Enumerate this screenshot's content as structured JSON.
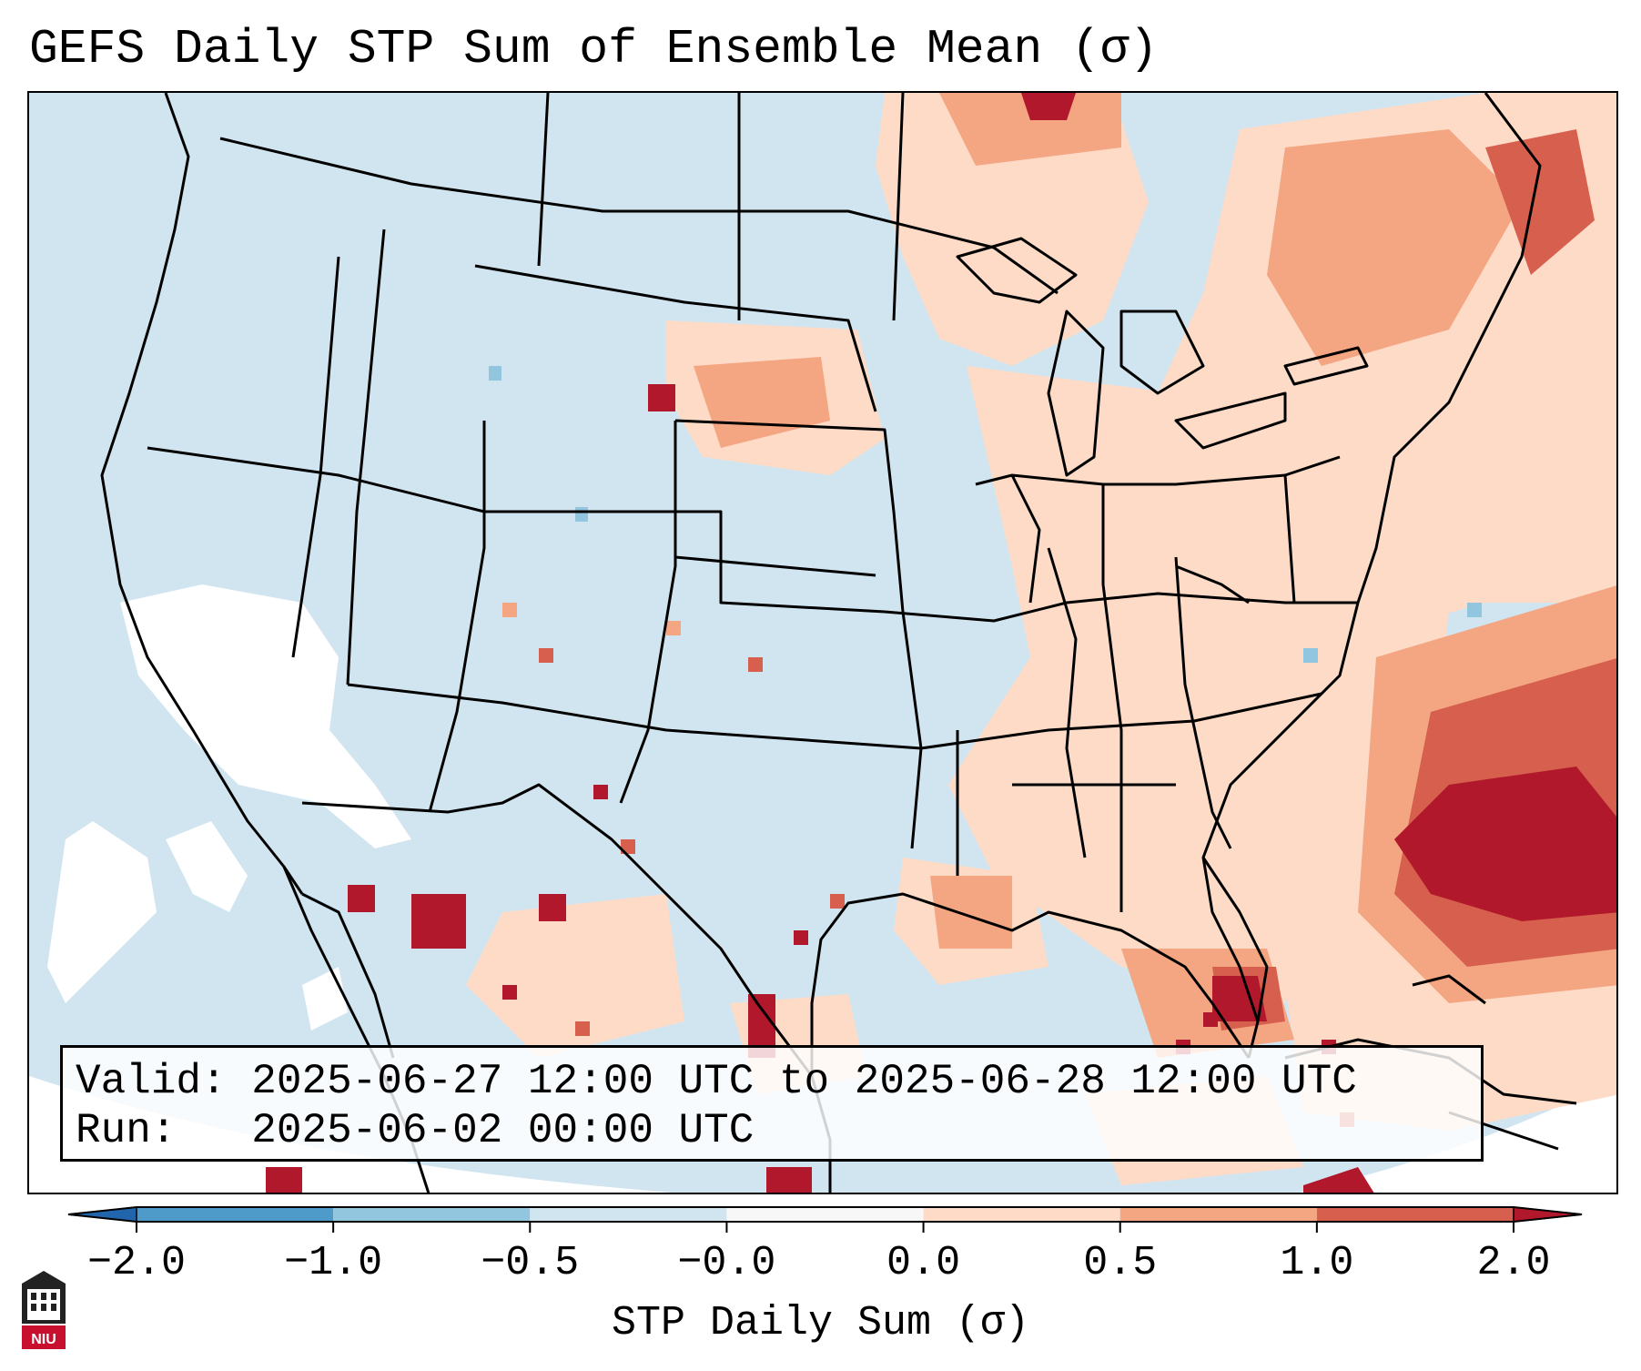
{
  "title": "GEFS Daily STP Sum of Ensemble Mean (σ)",
  "info": {
    "valid_label": "Valid:",
    "valid_value": "2025-06-27 12:00 UTC to 2025-06-28 12:00 UTC",
    "run_label": "Run:",
    "run_value": "2025-06-02 00:00 UTC"
  },
  "colorbar": {
    "label": "STP Daily Sum (σ)",
    "ticks": [
      "−2.0",
      "−1.0",
      "−0.5",
      "−0.0",
      "0.0",
      "0.5",
      "1.0",
      "2.0"
    ],
    "bin_colors": [
      "#2c7bb6",
      "#4e9ac9",
      "#92c5de",
      "#d1e5f0",
      "#f7f7f7",
      "#fddbc7",
      "#f4a582",
      "#d6604d",
      "#b2182b"
    ],
    "undershoot_color": "#2166ac",
    "overshoot_color": "#b2182b"
  },
  "logo": {
    "text": "NIU"
  },
  "colors": {
    "ocean_neutral": "#d1e5f0",
    "outside_domain": "#ffffff",
    "boundary": "#000000"
  }
}
